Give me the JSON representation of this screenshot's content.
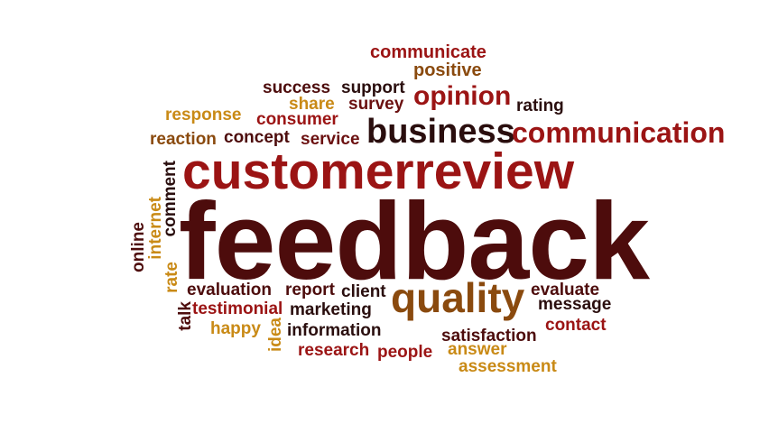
{
  "palette": {
    "dark": "#4d0c0c",
    "maroon": "#6b1010",
    "red": "#9b1414",
    "brown": "#8a4a0e",
    "gold": "#c98a16",
    "nearblack": "#2a0e0e"
  },
  "words": {
    "feedback": "feedback",
    "customerreview": "customerreview",
    "business": "business",
    "communication": "communication",
    "quality": "quality",
    "opinion": "opinion",
    "communicate": "communicate",
    "positive": "positive",
    "success": "success",
    "support": "support",
    "survey": "survey",
    "rating": "rating",
    "share": "share",
    "response": "response",
    "consumer": "consumer",
    "reaction": "reaction",
    "concept": "concept",
    "service": "service",
    "comment": "comment",
    "internet": "internet",
    "online": "online",
    "rate": "rate",
    "talk": "talk",
    "idea": "idea",
    "evaluation": "evaluation",
    "report": "report",
    "client": "client",
    "testimonial": "testimonial",
    "marketing": "marketing",
    "happy": "happy",
    "information": "information",
    "research": "research",
    "people": "people",
    "evaluate": "evaluate",
    "message": "message",
    "contact": "contact",
    "satisfaction": "satisfaction",
    "answer": "answer",
    "assessment": "assessment"
  }
}
